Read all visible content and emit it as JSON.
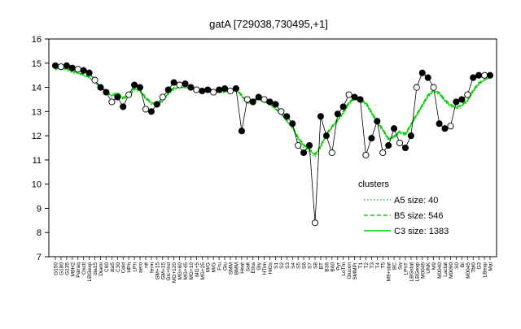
{
  "chart_data": {
    "type": "line",
    "title": "gatA [729038,730495,+1]",
    "xlabel": "",
    "ylabel": "",
    "ylim": [
      7,
      16
    ],
    "yticks": [
      7,
      8,
      9,
      10,
      11,
      12,
      13,
      14,
      15,
      16
    ],
    "grid": false,
    "legend_placement": "bottom-right",
    "legend_title": "clusters",
    "x_tick_labels": [
      "G150",
      "G180",
      "G135",
      "M9H2",
      "Pairaq",
      "Oxctl",
      "LBGexp",
      "dia15",
      "Diami",
      "C90",
      "dia5",
      "C30",
      "Cold",
      "HPh",
      "LPh",
      "aero",
      "nit",
      "ferm",
      "GM+15",
      "GM+15",
      "Glc+Ind",
      "MG+120",
      "MG+60",
      "MG+45",
      "MG+10",
      "MG+5",
      "MG+25",
      "M/G",
      "M/G",
      "Fru",
      "Glu",
      "SMM",
      "BMM",
      "Heat",
      "Salt",
      "Etha",
      "Gly",
      "HTim",
      "HiOs",
      "S1",
      "S2",
      "S3",
      "S4",
      "S5",
      "S6",
      "S7",
      "S8",
      "BT",
      "B36",
      "B60",
      "Pyr",
      "LoTm",
      "Glucon",
      "SMMPr",
      "T1",
      "T2",
      "T3",
      "T4",
      "T5",
      "M9+stat",
      "BC",
      "Sw",
      "LPhT",
      "LBGstat",
      "LBGexp",
      "M0045",
      "UNK",
      "M9",
      "M0040",
      "Lactat",
      "M0090",
      "S0",
      "BI",
      "M0045",
      "Tbl0",
      "G3",
      "LBexp",
      "Mal"
    ],
    "series": [
      {
        "name": "A5 size: 40",
        "style": "dotted",
        "color": "#00cc00",
        "values": [
          14.7,
          14.8,
          14.7,
          14.6,
          14.55,
          14.5,
          14.4,
          14.2,
          14.0,
          13.8,
          13.6,
          13.7,
          13.5,
          13.6,
          13.9,
          13.8,
          13.5,
          13.3,
          13.2,
          13.4,
          13.7,
          13.9,
          14.0,
          14.0,
          13.95,
          13.9,
          13.85,
          13.9,
          13.85,
          13.8,
          13.8,
          13.9,
          13.9,
          13.6,
          13.3,
          13.4,
          13.5,
          13.4,
          13.3,
          13.1,
          12.9,
          12.6,
          12.3,
          11.8,
          11.5,
          11.3,
          11.1,
          11.5,
          12.0,
          12.3,
          12.6,
          12.9,
          13.3,
          13.5,
          13.4,
          13.3,
          12.9,
          12.5,
          12.2,
          11.8,
          11.9,
          12.1,
          12.0,
          12.4,
          12.8,
          13.2,
          13.6,
          13.8,
          13.7,
          13.4,
          13.2,
          13.1,
          13.2,
          13.4,
          13.8,
          14.1,
          14.3,
          14.4
        ]
      },
      {
        "name": "B5 size: 546",
        "style": "dashed",
        "color": "#00cc00",
        "values": [
          14.8,
          14.85,
          14.8,
          14.7,
          14.6,
          14.55,
          14.45,
          14.25,
          14.05,
          13.85,
          13.7,
          13.8,
          13.6,
          13.7,
          14.0,
          13.9,
          13.6,
          13.4,
          13.3,
          13.5,
          13.8,
          14.0,
          14.05,
          14.05,
          14.0,
          13.95,
          13.9,
          13.95,
          13.9,
          13.85,
          13.85,
          13.95,
          13.95,
          13.7,
          13.4,
          13.5,
          13.55,
          13.45,
          13.35,
          13.15,
          12.95,
          12.65,
          12.4,
          11.95,
          11.65,
          11.45,
          11.25,
          11.6,
          12.1,
          12.4,
          12.7,
          13.0,
          13.4,
          13.6,
          13.5,
          13.4,
          13.0,
          12.6,
          12.3,
          11.9,
          12.0,
          12.2,
          12.1,
          12.5,
          12.9,
          13.3,
          13.7,
          13.9,
          13.8,
          13.5,
          13.3,
          13.2,
          13.3,
          13.5,
          13.9,
          14.2,
          14.35,
          14.45
        ]
      },
      {
        "name": "C3 size: 1383",
        "style": "solid",
        "color": "#00cc00",
        "values": [
          14.75,
          14.8,
          14.75,
          14.65,
          14.6,
          14.5,
          14.4,
          14.2,
          14.0,
          13.8,
          13.65,
          13.75,
          13.55,
          13.65,
          13.95,
          13.85,
          13.55,
          13.35,
          13.25,
          13.45,
          13.75,
          13.95,
          14.0,
          14.0,
          13.95,
          13.9,
          13.85,
          13.9,
          13.85,
          13.8,
          13.8,
          13.9,
          13.9,
          13.65,
          13.35,
          13.45,
          13.5,
          13.4,
          13.3,
          13.1,
          12.9,
          12.6,
          12.35,
          11.9,
          11.6,
          11.4,
          11.2,
          11.55,
          12.05,
          12.35,
          12.65,
          12.95,
          13.35,
          13.55,
          13.45,
          13.35,
          12.95,
          12.55,
          12.25,
          11.85,
          11.95,
          12.15,
          12.05,
          12.45,
          12.85,
          13.25,
          13.65,
          13.85,
          13.75,
          13.45,
          13.25,
          13.15,
          13.25,
          13.45,
          13.85,
          14.15,
          14.3,
          14.4
        ]
      }
    ],
    "gene_points": [
      14.9,
      14.85,
      14.9,
      14.8,
      14.75,
      14.7,
      14.6,
      14.3,
      14.0,
      13.8,
      13.4,
      13.6,
      13.2,
      13.7,
      14.1,
      14.0,
      13.1,
      13.0,
      13.3,
      13.6,
      13.9,
      14.2,
      14.1,
      14.15,
      14.0,
      13.9,
      13.85,
      13.9,
      13.8,
      13.9,
      13.95,
      13.85,
      13.95,
      12.2,
      13.5,
      13.4,
      13.6,
      13.5,
      13.4,
      13.3,
      13.0,
      12.8,
      12.5,
      11.6,
      11.3,
      11.6,
      8.4,
      12.8,
      12.0,
      11.3,
      12.9,
      13.2,
      13.7,
      13.6,
      13.5,
      11.2,
      11.9,
      12.6,
      11.3,
      11.6,
      12.3,
      11.7,
      11.5,
      12.0,
      14.0,
      14.6,
      14.4,
      14.0,
      12.5,
      12.3,
      12.4,
      13.4,
      13.5,
      13.7,
      14.4,
      14.5,
      14.5,
      14.5
    ]
  }
}
